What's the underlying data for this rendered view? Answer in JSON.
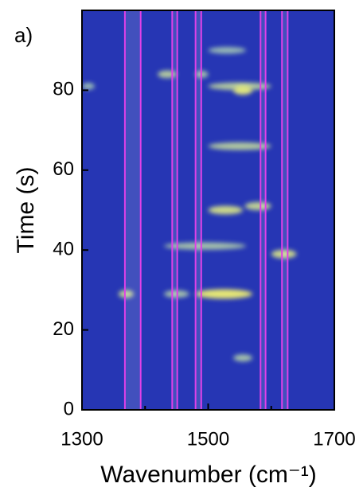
{
  "chart_data": {
    "type": "heatmap",
    "panel_label": "a)",
    "x_label": "Wavenumber (cm⁻¹)",
    "y_label": "Time (s)",
    "xlim": [
      1300,
      1700
    ],
    "xticks": [
      1300,
      1500,
      1700
    ],
    "xminorticks": [
      1400,
      1600
    ],
    "ylim": [
      0,
      100
    ],
    "yticks": [
      0,
      20,
      40,
      60,
      80
    ],
    "background_color": "#2636b4",
    "band_color": "#e040e8",
    "bands": [
      [
        1368,
        1393
      ],
      [
        1443,
        1451
      ],
      [
        1480,
        1489
      ],
      [
        1583,
        1591
      ],
      [
        1617,
        1626
      ]
    ],
    "streaks": [
      {
        "x": [
          1480,
          1570
        ],
        "time": 29,
        "intensity": 1.0
      },
      {
        "x": [
          1358,
          1382
        ],
        "time": 29,
        "intensity": 0.7
      },
      {
        "x": [
          1430,
          1470
        ],
        "time": 29,
        "intensity": 0.5
      },
      {
        "x": [
          1500,
          1555
        ],
        "time": 50,
        "intensity": 0.8
      },
      {
        "x": [
          1558,
          1600
        ],
        "time": 51,
        "intensity": 0.7
      },
      {
        "x": [
          1500,
          1600
        ],
        "time": 81,
        "intensity": 0.6
      },
      {
        "x": [
          1540,
          1570
        ],
        "time": 80,
        "intensity": 0.9
      },
      {
        "x": [
          1600,
          1640
        ],
        "time": 39,
        "intensity": 0.8
      },
      {
        "x": [
          1430,
          1560
        ],
        "time": 41,
        "intensity": 0.5
      },
      {
        "x": [
          1500,
          1600
        ],
        "time": 66,
        "intensity": 0.6
      },
      {
        "x": [
          1420,
          1450
        ],
        "time": 84,
        "intensity": 0.6
      },
      {
        "x": [
          1480,
          1500
        ],
        "time": 84,
        "intensity": 0.5
      },
      {
        "x": [
          1500,
          1560
        ],
        "time": 90,
        "intensity": 0.4
      },
      {
        "x": [
          1540,
          1570
        ],
        "time": 13,
        "intensity": 0.5
      },
      {
        "x": [
          1300,
          1320
        ],
        "time": 81,
        "intensity": 0.4
      }
    ]
  }
}
